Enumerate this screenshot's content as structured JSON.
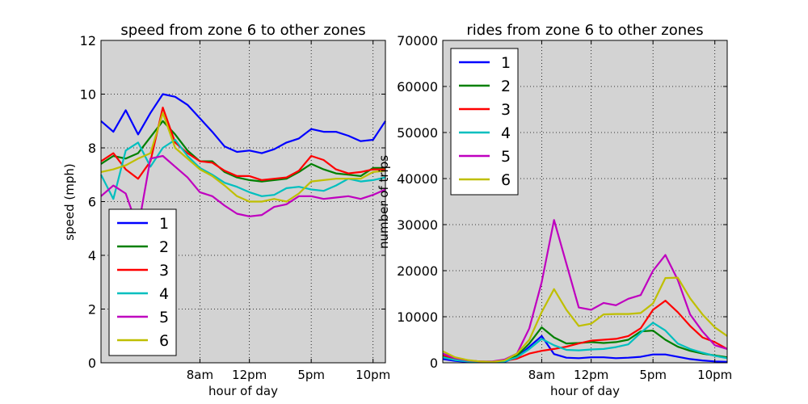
{
  "colors": {
    "plot_bg": "#d3d3d3",
    "series": [
      "#0000ff",
      "#008000",
      "#ff0000",
      "#00bfbf",
      "#bf00bf",
      "#bfbf00"
    ]
  },
  "chart_data": [
    {
      "type": "line",
      "title": "speed from zone 6 to other zones",
      "xlabel": "hour of day",
      "ylabel": "speed (mph)",
      "xlim": [
        0,
        23
      ],
      "ylim": [
        0,
        12
      ],
      "yticks": [
        0,
        2,
        4,
        6,
        8,
        10,
        12
      ],
      "xticks": [
        8,
        12,
        17,
        22
      ],
      "xtick_labels": [
        "8am",
        "12pm",
        "5pm",
        "10pm"
      ],
      "grid": true,
      "legend": "lower-left",
      "x": [
        0,
        1,
        2,
        3,
        4,
        5,
        6,
        7,
        8,
        9,
        10,
        11,
        12,
        13,
        14,
        15,
        16,
        17,
        18,
        19,
        20,
        21,
        22,
        23
      ],
      "series": [
        {
          "name": "1",
          "values": [
            9.0,
            8.6,
            9.4,
            8.5,
            9.3,
            10.0,
            9.9,
            9.6,
            9.1,
            8.6,
            8.05,
            7.85,
            7.9,
            7.8,
            7.95,
            8.2,
            8.35,
            8.7,
            8.6,
            8.6,
            8.45,
            8.25,
            8.3,
            9.0
          ]
        },
        {
          "name": "2",
          "values": [
            7.4,
            7.7,
            7.6,
            7.8,
            8.4,
            9.0,
            8.5,
            7.9,
            7.5,
            7.5,
            7.1,
            6.9,
            6.8,
            6.75,
            6.8,
            6.85,
            7.1,
            7.4,
            7.2,
            7.05,
            7.0,
            6.95,
            7.25,
            7.25
          ]
        },
        {
          "name": "3",
          "values": [
            7.5,
            7.8,
            7.2,
            6.85,
            7.5,
            9.5,
            8.2,
            7.8,
            7.5,
            7.45,
            7.15,
            6.95,
            6.95,
            6.8,
            6.85,
            6.9,
            7.15,
            7.7,
            7.55,
            7.2,
            7.05,
            7.1,
            7.2,
            7.2
          ]
        },
        {
          "name": "4",
          "values": [
            7.0,
            6.1,
            7.9,
            8.2,
            7.3,
            8.0,
            8.3,
            7.7,
            7.25,
            7.0,
            6.7,
            6.55,
            6.35,
            6.2,
            6.25,
            6.5,
            6.55,
            6.45,
            6.4,
            6.6,
            6.85,
            6.75,
            6.8,
            6.9
          ]
        },
        {
          "name": "5",
          "values": [
            6.2,
            6.6,
            6.3,
            5.0,
            7.6,
            7.7,
            7.3,
            6.9,
            6.35,
            6.2,
            5.85,
            5.55,
            5.45,
            5.5,
            5.8,
            5.9,
            6.2,
            6.2,
            6.1,
            6.15,
            6.2,
            6.1,
            6.25,
            6.45
          ]
        },
        {
          "name": "6",
          "values": [
            7.1,
            7.2,
            7.35,
            7.6,
            7.8,
            9.3,
            8.0,
            7.6,
            7.2,
            6.95,
            6.6,
            6.2,
            6.0,
            6.0,
            6.1,
            6.0,
            6.3,
            6.75,
            6.8,
            6.85,
            6.85,
            6.85,
            7.1,
            7.15
          ]
        }
      ]
    },
    {
      "type": "line",
      "title": "rides from zone 6 to other zones",
      "xlabel": "hour of day",
      "ylabel": "number of trips",
      "xlim": [
        0,
        23
      ],
      "ylim": [
        0,
        70000
      ],
      "yticks": [
        0,
        10000,
        20000,
        30000,
        40000,
        50000,
        60000,
        70000
      ],
      "xticks": [
        8,
        12,
        17,
        22
      ],
      "xtick_labels": [
        "8am",
        "12pm",
        "5pm",
        "10pm"
      ],
      "grid": true,
      "legend": "upper-left",
      "x": [
        0,
        1,
        2,
        3,
        4,
        5,
        6,
        7,
        8,
        9,
        10,
        11,
        12,
        13,
        14,
        15,
        16,
        17,
        18,
        19,
        20,
        21,
        22,
        23
      ],
      "series": [
        {
          "name": "1",
          "values": [
            800,
            400,
            200,
            100,
            100,
            200,
            1200,
            3500,
            5800,
            1900,
            1100,
            1000,
            1200,
            1200,
            1000,
            1100,
            1300,
            1800,
            1800,
            1300,
            800,
            500,
            300,
            200
          ]
        },
        {
          "name": "2",
          "values": [
            1500,
            800,
            400,
            200,
            200,
            400,
            1500,
            4200,
            7700,
            5500,
            4200,
            4300,
            4500,
            4300,
            4500,
            5000,
            6800,
            7000,
            5000,
            3500,
            2600,
            2000,
            1600,
            1200
          ]
        },
        {
          "name": "3",
          "values": [
            1700,
            900,
            500,
            300,
            200,
            400,
            900,
            2000,
            2600,
            3000,
            3500,
            4200,
            4800,
            5000,
            5200,
            5800,
            7500,
            11500,
            13500,
            11000,
            8000,
            5500,
            4500,
            3000
          ]
        },
        {
          "name": "4",
          "values": [
            1200,
            600,
            300,
            150,
            100,
            300,
            1200,
            3000,
            5200,
            3800,
            2800,
            2700,
            2900,
            3000,
            3400,
            4000,
            6500,
            8700,
            7000,
            4200,
            3000,
            2200,
            1500,
            1000
          ]
        },
        {
          "name": "5",
          "values": [
            2000,
            1000,
            500,
            300,
            300,
            700,
            2000,
            7500,
            17500,
            31000,
            21500,
            12000,
            11500,
            13000,
            12500,
            13900,
            14700,
            20000,
            23400,
            18000,
            10500,
            6800,
            3800,
            3000
          ]
        },
        {
          "name": "6",
          "values": [
            2500,
            1200,
            600,
            300,
            200,
            500,
            2000,
            5000,
            11000,
            16000,
            11500,
            8000,
            8500,
            10500,
            10600,
            10600,
            10800,
            12900,
            18400,
            18500,
            14000,
            10500,
            7700,
            5800
          ]
        }
      ]
    }
  ]
}
